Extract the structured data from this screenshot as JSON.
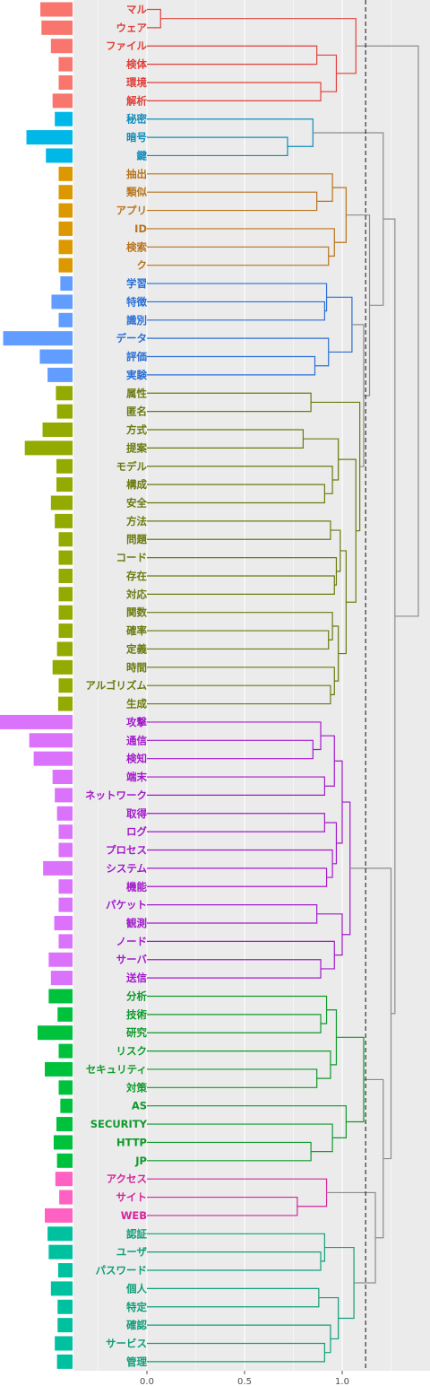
{
  "chart_data": {
    "type": "dendrogram",
    "x_axis": {
      "ticks": [
        "0.0",
        "0.5",
        "1.0"
      ],
      "tick_values": [
        0.0,
        0.5,
        1.0
      ],
      "range": [
        -0.38,
        1.45
      ]
    },
    "cut_height": 1.12,
    "grid": "on",
    "cluster_colors": [
      "#e0403a",
      "#118cbb",
      "#b8731b",
      "#2a6fd6",
      "#6b7a0f",
      "#a319cc",
      "#0e9a2b",
      "#d6249c",
      "#109e7a"
    ],
    "leaves": [
      {
        "label": "マル",
        "cluster": 0,
        "freq": 0.58
      },
      {
        "label": "ウェア",
        "cluster": 0,
        "freq": 0.56
      },
      {
        "label": "ファイル",
        "cluster": 0,
        "freq": 0.39
      },
      {
        "label": "検体",
        "cluster": 0,
        "freq": 0.25
      },
      {
        "label": "環境",
        "cluster": 0,
        "freq": 0.25
      },
      {
        "label": "解析",
        "cluster": 0,
        "freq": 0.36
      },
      {
        "label": "秘密",
        "cluster": 1,
        "freq": 0.32
      },
      {
        "label": "暗号",
        "cluster": 1,
        "freq": 0.83
      },
      {
        "label": "鍵",
        "cluster": 1,
        "freq": 0.48
      },
      {
        "label": "抽出",
        "cluster": 2,
        "freq": 0.25
      },
      {
        "label": "類似",
        "cluster": 2,
        "freq": 0.25
      },
      {
        "label": "アプリ",
        "cluster": 2,
        "freq": 0.25
      },
      {
        "label": "ID",
        "cluster": 2,
        "freq": 0.25
      },
      {
        "label": "検索",
        "cluster": 2,
        "freq": 0.25
      },
      {
        "label": "ク",
        "cluster": 2,
        "freq": 0.25
      },
      {
        "label": "学習",
        "cluster": 3,
        "freq": 0.22
      },
      {
        "label": "特徴",
        "cluster": 3,
        "freq": 0.38
      },
      {
        "label": "識別",
        "cluster": 3,
        "freq": 0.25
      },
      {
        "label": "データ",
        "cluster": 3,
        "freq": 1.25
      },
      {
        "label": "評価",
        "cluster": 3,
        "freq": 0.59
      },
      {
        "label": "実験",
        "cluster": 3,
        "freq": 0.45
      },
      {
        "label": "属性",
        "cluster": 4,
        "freq": 0.3
      },
      {
        "label": "匿名",
        "cluster": 4,
        "freq": 0.28
      },
      {
        "label": "方式",
        "cluster": 4,
        "freq": 0.54
      },
      {
        "label": "提案",
        "cluster": 4,
        "freq": 0.86
      },
      {
        "label": "モデル",
        "cluster": 4,
        "freq": 0.29
      },
      {
        "label": "構成",
        "cluster": 4,
        "freq": 0.29
      },
      {
        "label": "安全",
        "cluster": 4,
        "freq": 0.39
      },
      {
        "label": "方法",
        "cluster": 4,
        "freq": 0.32
      },
      {
        "label": "問題",
        "cluster": 4,
        "freq": 0.25
      },
      {
        "label": "コード",
        "cluster": 4,
        "freq": 0.25
      },
      {
        "label": "存在",
        "cluster": 4,
        "freq": 0.25
      },
      {
        "label": "対応",
        "cluster": 4,
        "freq": 0.25
      },
      {
        "label": "関数",
        "cluster": 4,
        "freq": 0.25
      },
      {
        "label": "確率",
        "cluster": 4,
        "freq": 0.25
      },
      {
        "label": "定義",
        "cluster": 4,
        "freq": 0.28
      },
      {
        "label": "時間",
        "cluster": 4,
        "freq": 0.36
      },
      {
        "label": "アルゴリズム",
        "cluster": 4,
        "freq": 0.25
      },
      {
        "label": "生成",
        "cluster": 4,
        "freq": 0.26
      },
      {
        "label": "攻撃",
        "cluster": 5,
        "freq": 1.38
      },
      {
        "label": "通信",
        "cluster": 5,
        "freq": 0.78
      },
      {
        "label": "検知",
        "cluster": 5,
        "freq": 0.7
      },
      {
        "label": "端末",
        "cluster": 5,
        "freq": 0.36
      },
      {
        "label": "ネットワーク",
        "cluster": 5,
        "freq": 0.32
      },
      {
        "label": "取得",
        "cluster": 5,
        "freq": 0.28
      },
      {
        "label": "ログ",
        "cluster": 5,
        "freq": 0.25
      },
      {
        "label": "プロセス",
        "cluster": 5,
        "freq": 0.25
      },
      {
        "label": "システム",
        "cluster": 5,
        "freq": 0.53
      },
      {
        "label": "機能",
        "cluster": 5,
        "freq": 0.25
      },
      {
        "label": "パケット",
        "cluster": 5,
        "freq": 0.25
      },
      {
        "label": "観測",
        "cluster": 5,
        "freq": 0.33
      },
      {
        "label": "ノード",
        "cluster": 5,
        "freq": 0.25
      },
      {
        "label": "サーバ",
        "cluster": 5,
        "freq": 0.43
      },
      {
        "label": "送信",
        "cluster": 5,
        "freq": 0.39
      },
      {
        "label": "分析",
        "cluster": 6,
        "freq": 0.43
      },
      {
        "label": "技術",
        "cluster": 6,
        "freq": 0.27
      },
      {
        "label": "研究",
        "cluster": 6,
        "freq": 0.63
      },
      {
        "label": "リスク",
        "cluster": 6,
        "freq": 0.25
      },
      {
        "label": "セキュリティ",
        "cluster": 6,
        "freq": 0.5
      },
      {
        "label": "対策",
        "cluster": 6,
        "freq": 0.25
      },
      {
        "label": "AS",
        "cluster": 6,
        "freq": 0.22
      },
      {
        "label": "SECURITY",
        "cluster": 6,
        "freq": 0.29
      },
      {
        "label": "HTTP",
        "cluster": 6,
        "freq": 0.34
      },
      {
        "label": "JP",
        "cluster": 6,
        "freq": 0.28
      },
      {
        "label": "アクセス",
        "cluster": 7,
        "freq": 0.31
      },
      {
        "label": "サイト",
        "cluster": 7,
        "freq": 0.24
      },
      {
        "label": "WEB",
        "cluster": 7,
        "freq": 0.5
      },
      {
        "label": "認証",
        "cluster": 8,
        "freq": 0.45
      },
      {
        "label": "ユーザ",
        "cluster": 8,
        "freq": 0.43
      },
      {
        "label": "パスワード",
        "cluster": 8,
        "freq": 0.26
      },
      {
        "label": "個人",
        "cluster": 8,
        "freq": 0.39
      },
      {
        "label": "特定",
        "cluster": 8,
        "freq": 0.27
      },
      {
        "label": "確認",
        "cluster": 8,
        "freq": 0.27
      },
      {
        "label": "サービス",
        "cluster": 8,
        "freq": 0.32
      },
      {
        "label": "管理",
        "cluster": 8,
        "freq": 0.28
      }
    ],
    "merges": [
      {
        "a": "L0",
        "b": "L1",
        "h": 0.07,
        "cluster": 0
      },
      {
        "a": "L2",
        "b": "L3",
        "h": 0.87,
        "cluster": 0
      },
      {
        "a": "L4",
        "b": "L5",
        "h": 0.89,
        "cluster": 0
      },
      {
        "a": "M1",
        "b": "M2",
        "h": 0.97,
        "cluster": 0
      },
      {
        "a": "M0",
        "b": "M3",
        "h": 1.07,
        "cluster": 0
      },
      {
        "a": "L7",
        "b": "L8",
        "h": 0.72,
        "cluster": 1
      },
      {
        "a": "L6",
        "b": "M5",
        "h": 0.85,
        "cluster": 1
      },
      {
        "a": "L10",
        "b": "L11",
        "h": 0.87,
        "cluster": 2
      },
      {
        "a": "L9",
        "b": "M7",
        "h": 0.95,
        "cluster": 2
      },
      {
        "a": "L13",
        "b": "L14",
        "h": 0.93,
        "cluster": 2
      },
      {
        "a": "L12",
        "b": "M9",
        "h": 0.96,
        "cluster": 2
      },
      {
        "a": "M8",
        "b": "M10",
        "h": 1.02,
        "cluster": 2
      },
      {
        "a": "L16",
        "b": "L17",
        "h": 0.91,
        "cluster": 3
      },
      {
        "a": "L15",
        "b": "M12",
        "h": 0.92,
        "cluster": 3
      },
      {
        "a": "L19",
        "b": "L20",
        "h": 0.86,
        "cluster": 3
      },
      {
        "a": "L18",
        "b": "M14",
        "h": 0.93,
        "cluster": 3
      },
      {
        "a": "M13",
        "b": "M15",
        "h": 1.05,
        "cluster": 3
      },
      {
        "a": "L21",
        "b": "L22",
        "h": 0.84,
        "cluster": 4
      },
      {
        "a": "L23",
        "b": "L24",
        "h": 0.8,
        "cluster": 4
      },
      {
        "a": "L26",
        "b": "L27",
        "h": 0.91,
        "cluster": 4
      },
      {
        "a": "L25",
        "b": "M19",
        "h": 0.95,
        "cluster": 4
      },
      {
        "a": "M18",
        "b": "M20",
        "h": 0.98,
        "cluster": 4
      },
      {
        "a": "L28",
        "b": "L29",
        "h": 0.94,
        "cluster": 4
      },
      {
        "a": "L31",
        "b": "L32",
        "h": 0.96,
        "cluster": 4
      },
      {
        "a": "L30",
        "b": "M23",
        "h": 0.97,
        "cluster": 4
      },
      {
        "a": "M22",
        "b": "M24",
        "h": 0.99,
        "cluster": 4
      },
      {
        "a": "L34",
        "b": "L35",
        "h": 0.93,
        "cluster": 4
      },
      {
        "a": "L33",
        "b": "M26",
        "h": 0.95,
        "cluster": 4
      },
      {
        "a": "L37",
        "b": "L38",
        "h": 0.94,
        "cluster": 4
      },
      {
        "a": "L36",
        "b": "M28",
        "h": 0.96,
        "cluster": 4
      },
      {
        "a": "M27",
        "b": "M29",
        "h": 0.98,
        "cluster": 4
      },
      {
        "a": "M25",
        "b": "M30",
        "h": 1.02,
        "cluster": 4
      },
      {
        "a": "M21",
        "b": "M31",
        "h": 1.07,
        "cluster": 4
      },
      {
        "a": "M17",
        "b": "M32",
        "h": 1.09,
        "cluster": 4
      },
      {
        "a": "L40",
        "b": "L41",
        "h": 0.85,
        "cluster": 5
      },
      {
        "a": "L39",
        "b": "M34",
        "h": 0.89,
        "cluster": 5
      },
      {
        "a": "L42",
        "b": "L43",
        "h": 0.91,
        "cluster": 5
      },
      {
        "a": "M35",
        "b": "M36",
        "h": 0.96,
        "cluster": 5
      },
      {
        "a": "L44",
        "b": "L45",
        "h": 0.91,
        "cluster": 5
      },
      {
        "a": "L47",
        "b": "L48",
        "h": 0.92,
        "cluster": 5
      },
      {
        "a": "L46",
        "b": "M39",
        "h": 0.95,
        "cluster": 5
      },
      {
        "a": "M38",
        "b": "M40",
        "h": 0.97,
        "cluster": 5
      },
      {
        "a": "M37",
        "b": "M41",
        "h": 1.0,
        "cluster": 5
      },
      {
        "a": "L49",
        "b": "L50",
        "h": 0.87,
        "cluster": 5
      },
      {
        "a": "L52",
        "b": "L53",
        "h": 0.89,
        "cluster": 5
      },
      {
        "a": "L51",
        "b": "M44",
        "h": 0.96,
        "cluster": 5
      },
      {
        "a": "M43",
        "b": "M45",
        "h": 1.0,
        "cluster": 5
      },
      {
        "a": "M42",
        "b": "M46",
        "h": 1.04,
        "cluster": 5
      },
      {
        "a": "L55",
        "b": "L56",
        "h": 0.89,
        "cluster": 6
      },
      {
        "a": "L54",
        "b": "M48",
        "h": 0.92,
        "cluster": 6
      },
      {
        "a": "L58",
        "b": "L59",
        "h": 0.87,
        "cluster": 6
      },
      {
        "a": "L57",
        "b": "M50",
        "h": 0.94,
        "cluster": 6
      },
      {
        "a": "M49",
        "b": "M51",
        "h": 0.97,
        "cluster": 6
      },
      {
        "a": "L62",
        "b": "L63",
        "h": 0.84,
        "cluster": 6
      },
      {
        "a": "L61",
        "b": "M53",
        "h": 0.95,
        "cluster": 6
      },
      {
        "a": "L60",
        "b": "M54",
        "h": 1.02,
        "cluster": 6
      },
      {
        "a": "M52",
        "b": "M55",
        "h": 1.11,
        "cluster": 6
      },
      {
        "a": "L65",
        "b": "L66",
        "h": 0.77,
        "cluster": 7
      },
      {
        "a": "L64",
        "b": "M57",
        "h": 0.92,
        "cluster": 7
      },
      {
        "a": "L68",
        "b": "L69",
        "h": 0.89,
        "cluster": 8
      },
      {
        "a": "L67",
        "b": "M59",
        "h": 0.91,
        "cluster": 8
      },
      {
        "a": "L70",
        "b": "L71",
        "h": 0.88,
        "cluster": 8
      },
      {
        "a": "L73",
        "b": "L74",
        "h": 0.91,
        "cluster": 8
      },
      {
        "a": "L72",
        "b": "M62",
        "h": 0.94,
        "cluster": 8
      },
      {
        "a": "M61",
        "b": "M63",
        "h": 0.98,
        "cluster": 8
      },
      {
        "a": "M60",
        "b": "M64",
        "h": 1.06,
        "cluster": 8
      },
      {
        "a": "M16",
        "b": "M33",
        "h": 1.11,
        "cluster": -1
      },
      {
        "a": "M11",
        "b": "M66",
        "h": 1.14,
        "cluster": -1
      },
      {
        "a": "M6",
        "b": "M67",
        "h": 1.21,
        "cluster": -1
      },
      {
        "a": "M58",
        "b": "M65",
        "h": 1.17,
        "cluster": -1
      },
      {
        "a": "M56",
        "b": "M69",
        "h": 1.21,
        "cluster": -1
      },
      {
        "a": "M47",
        "b": "M70",
        "h": 1.25,
        "cluster": -1
      },
      {
        "a": "M68",
        "b": "M71",
        "h": 1.27,
        "cluster": -1
      },
      {
        "a": "M4",
        "b": "M72",
        "h": 1.39,
        "cluster": -1
      }
    ]
  }
}
